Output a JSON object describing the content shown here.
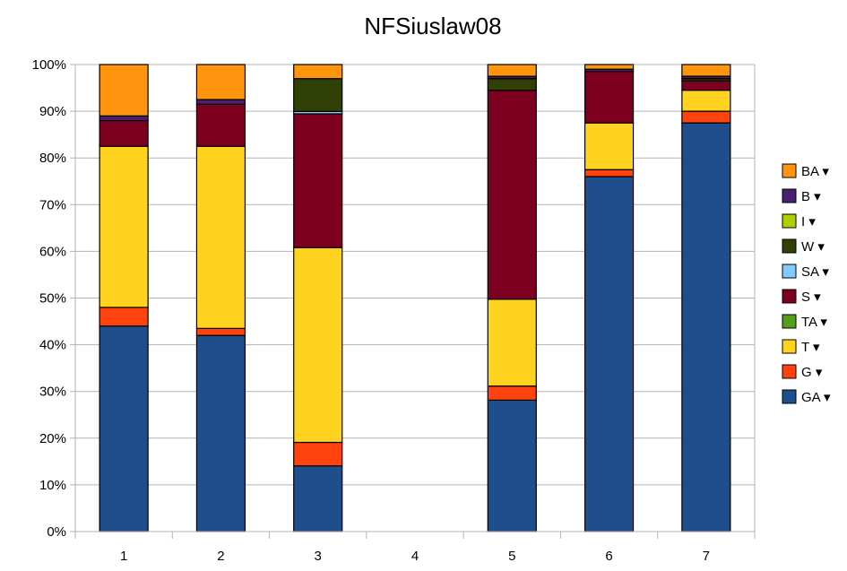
{
  "chart_data": {
    "type": "bar",
    "stacked": "percent",
    "title": "NFSiuslaw08",
    "xlabel": "",
    "ylabel": "",
    "categories": [
      "1",
      "2",
      "3",
      "4",
      "5",
      "6",
      "7"
    ],
    "y_ticks": [
      "0%",
      "10%",
      "20%",
      "30%",
      "40%",
      "50%",
      "60%",
      "70%",
      "80%",
      "90%",
      "100%"
    ],
    "ylim": [
      0,
      100
    ],
    "grid": true,
    "legend_position": "right",
    "legend_marker": "▾",
    "series": [
      {
        "name": "GA",
        "color": "#1f4e8c",
        "values": [
          44,
          42,
          14,
          0,
          28,
          76,
          87.5
        ]
      },
      {
        "name": "G",
        "color": "#ff420e",
        "values": [
          4,
          1.5,
          5,
          0,
          3,
          1.5,
          2.5
        ]
      },
      {
        "name": "T",
        "color": "#ffd320",
        "values": [
          34.5,
          39,
          41.5,
          0,
          18.5,
          10,
          4.5
        ]
      },
      {
        "name": "TA",
        "color": "#579d1c",
        "values": [
          0,
          0,
          0,
          0,
          0,
          0,
          0
        ]
      },
      {
        "name": "S",
        "color": "#7e0021",
        "values": [
          5.5,
          9,
          28.5,
          0,
          44.5,
          11,
          2
        ]
      },
      {
        "name": "SA",
        "color": "#83caff",
        "values": [
          0,
          0,
          0.5,
          0,
          0,
          0,
          0
        ]
      },
      {
        "name": "W",
        "color": "#314004",
        "values": [
          0,
          0,
          7,
          0,
          2.5,
          0,
          0.5
        ]
      },
      {
        "name": "I",
        "color": "#aecf00",
        "values": [
          0,
          0,
          0,
          0,
          0,
          0,
          0
        ]
      },
      {
        "name": "B",
        "color": "#4b1f6f",
        "values": [
          1,
          1,
          0,
          0,
          0.5,
          0.5,
          0.5
        ]
      },
      {
        "name": "BA",
        "color": "#ff950e",
        "values": [
          11,
          7.5,
          3,
          0,
          2.5,
          1,
          2.5
        ]
      }
    ]
  }
}
